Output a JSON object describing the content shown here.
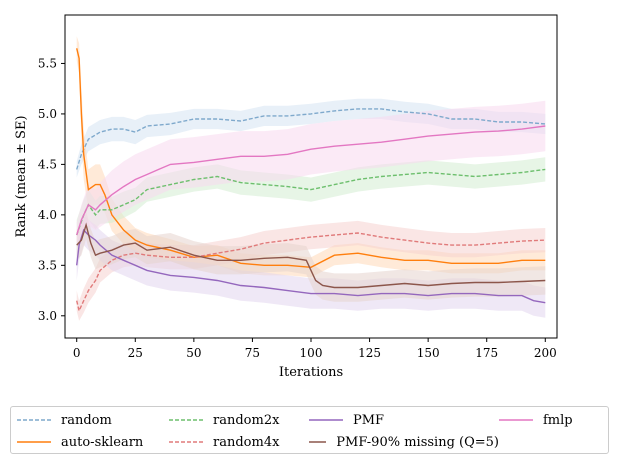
{
  "chart_data": {
    "type": "line",
    "title": "",
    "xlabel": "Iterations",
    "ylabel": "Rank (mean ± SE)",
    "xlim": [
      -5,
      205
    ],
    "ylim": [
      2.78,
      5.98
    ],
    "xticks": [
      0,
      25,
      50,
      75,
      100,
      125,
      150,
      175,
      200
    ],
    "yticks": [
      3.0,
      3.5,
      4.0,
      4.5,
      5.0,
      5.5
    ],
    "xtick_labels": [
      "0",
      "25",
      "50",
      "75",
      "100",
      "125",
      "150",
      "175",
      "200"
    ],
    "ytick_labels": [
      "3.0",
      "3.5",
      "4.0",
      "4.5",
      "5.0",
      "5.5"
    ],
    "legend_position": "below",
    "series": [
      {
        "name": "random",
        "color": "#7fa9cc",
        "band": "#d5e4f2",
        "dash": true,
        "x": [
          0,
          2,
          5,
          10,
          15,
          20,
          25,
          30,
          40,
          50,
          60,
          70,
          80,
          90,
          100,
          110,
          120,
          130,
          140,
          150,
          160,
          170,
          180,
          190,
          200
        ],
        "y": [
          4.45,
          4.6,
          4.75,
          4.82,
          4.85,
          4.85,
          4.82,
          4.88,
          4.9,
          4.95,
          4.95,
          4.93,
          4.98,
          4.98,
          5.0,
          5.03,
          5.05,
          5.05,
          5.02,
          5.0,
          4.95,
          4.95,
          4.92,
          4.92,
          4.9
        ],
        "se": [
          0.08,
          0.1,
          0.12,
          0.12,
          0.12,
          0.12,
          0.12,
          0.11,
          0.11,
          0.1,
          0.1,
          0.1,
          0.1,
          0.1,
          0.1,
          0.1,
          0.1,
          0.1,
          0.1,
          0.1,
          0.1,
          0.1,
          0.1,
          0.1,
          0.1
        ]
      },
      {
        "name": "auto-sklearn",
        "color": "#ff7f0e",
        "band": "#ffd9b8",
        "dash": false,
        "x": [
          0,
          1,
          2,
          3,
          5,
          8,
          10,
          12,
          15,
          20,
          25,
          30,
          40,
          50,
          60,
          70,
          80,
          90,
          100,
          110,
          120,
          130,
          140,
          150,
          160,
          170,
          180,
          190,
          200
        ],
        "y": [
          5.65,
          5.55,
          5.0,
          4.6,
          4.25,
          4.3,
          4.3,
          4.2,
          4.0,
          3.85,
          3.75,
          3.7,
          3.65,
          3.58,
          3.6,
          3.52,
          3.5,
          3.5,
          3.48,
          3.6,
          3.62,
          3.58,
          3.55,
          3.55,
          3.52,
          3.52,
          3.52,
          3.55,
          3.55
        ],
        "se": [
          0.12,
          0.15,
          0.25,
          0.25,
          0.2,
          0.2,
          0.2,
          0.18,
          0.16,
          0.14,
          0.12,
          0.12,
          0.11,
          0.11,
          0.1,
          0.1,
          0.1,
          0.1,
          0.1,
          0.1,
          0.1,
          0.1,
          0.1,
          0.1,
          0.1,
          0.1,
          0.1,
          0.1,
          0.1
        ]
      },
      {
        "name": "random2x",
        "color": "#6dbf6d",
        "band": "#d3ecd1",
        "dash": true,
        "x": [
          0,
          3,
          5,
          8,
          10,
          15,
          20,
          25,
          30,
          40,
          50,
          60,
          70,
          80,
          90,
          100,
          110,
          120,
          130,
          140,
          150,
          160,
          170,
          180,
          190,
          200
        ],
        "y": [
          3.8,
          4.0,
          4.1,
          4.0,
          4.05,
          4.05,
          4.1,
          4.15,
          4.25,
          4.3,
          4.35,
          4.38,
          4.32,
          4.3,
          4.28,
          4.25,
          4.3,
          4.35,
          4.38,
          4.4,
          4.42,
          4.4,
          4.38,
          4.4,
          4.42,
          4.45
        ],
        "se": [
          0.15,
          0.15,
          0.15,
          0.14,
          0.14,
          0.13,
          0.13,
          0.12,
          0.12,
          0.12,
          0.12,
          0.12,
          0.12,
          0.12,
          0.12,
          0.12,
          0.12,
          0.12,
          0.12,
          0.12,
          0.12,
          0.12,
          0.12,
          0.12,
          0.12,
          0.12
        ]
      },
      {
        "name": "random4x",
        "color": "#e07a7a",
        "band": "#f5d2cf",
        "dash": true,
        "x": [
          0,
          1,
          3,
          5,
          8,
          10,
          15,
          20,
          25,
          30,
          40,
          50,
          60,
          70,
          80,
          90,
          100,
          110,
          120,
          130,
          140,
          150,
          160,
          170,
          180,
          190,
          200
        ],
        "y": [
          3.15,
          3.05,
          3.15,
          3.25,
          3.35,
          3.45,
          3.55,
          3.6,
          3.62,
          3.6,
          3.58,
          3.58,
          3.62,
          3.66,
          3.72,
          3.75,
          3.78,
          3.8,
          3.82,
          3.78,
          3.75,
          3.72,
          3.7,
          3.7,
          3.72,
          3.74,
          3.75
        ],
        "se": [
          0.1,
          0.1,
          0.12,
          0.12,
          0.12,
          0.12,
          0.12,
          0.12,
          0.12,
          0.12,
          0.12,
          0.12,
          0.12,
          0.12,
          0.12,
          0.12,
          0.12,
          0.12,
          0.12,
          0.12,
          0.12,
          0.12,
          0.12,
          0.12,
          0.12,
          0.12,
          0.12
        ]
      },
      {
        "name": "PMF",
        "color": "#9467bd",
        "band": "#e2d6ef",
        "dash": false,
        "x": [
          0,
          1,
          3,
          5,
          8,
          10,
          15,
          20,
          25,
          30,
          40,
          50,
          60,
          70,
          80,
          90,
          100,
          110,
          120,
          130,
          140,
          150,
          160,
          170,
          180,
          190,
          195,
          200
        ],
        "y": [
          3.5,
          3.7,
          3.85,
          3.8,
          3.75,
          3.7,
          3.6,
          3.55,
          3.5,
          3.45,
          3.4,
          3.38,
          3.35,
          3.3,
          3.28,
          3.25,
          3.22,
          3.22,
          3.2,
          3.22,
          3.22,
          3.2,
          3.22,
          3.22,
          3.2,
          3.2,
          3.15,
          3.13
        ],
        "se": [
          0.15,
          0.15,
          0.15,
          0.15,
          0.15,
          0.15,
          0.15,
          0.15,
          0.15,
          0.15,
          0.15,
          0.15,
          0.15,
          0.15,
          0.15,
          0.15,
          0.15,
          0.15,
          0.15,
          0.15,
          0.15,
          0.15,
          0.15,
          0.15,
          0.15,
          0.15,
          0.15,
          0.15
        ]
      },
      {
        "name": "PMF-90% missing (Q=5)",
        "color": "#8c564b",
        "band": "#e5d3ce",
        "dash": false,
        "x": [
          0,
          2,
          4,
          6,
          8,
          10,
          15,
          20,
          25,
          30,
          40,
          50,
          60,
          70,
          80,
          90,
          98,
          100,
          102,
          105,
          110,
          120,
          130,
          140,
          150,
          160,
          170,
          180,
          190,
          200
        ],
        "y": [
          3.7,
          3.75,
          3.9,
          3.72,
          3.6,
          3.62,
          3.65,
          3.7,
          3.72,
          3.65,
          3.68,
          3.6,
          3.55,
          3.55,
          3.57,
          3.58,
          3.55,
          3.45,
          3.35,
          3.3,
          3.28,
          3.28,
          3.3,
          3.32,
          3.3,
          3.32,
          3.33,
          3.33,
          3.34,
          3.35
        ],
        "se": [
          0.15,
          0.15,
          0.14,
          0.14,
          0.14,
          0.14,
          0.14,
          0.14,
          0.14,
          0.14,
          0.14,
          0.14,
          0.14,
          0.14,
          0.14,
          0.14,
          0.14,
          0.14,
          0.14,
          0.14,
          0.14,
          0.14,
          0.14,
          0.14,
          0.14,
          0.14,
          0.14,
          0.14,
          0.14,
          0.14
        ]
      },
      {
        "name": "fmlp",
        "color": "#e377c2",
        "band": "#f7d8ee",
        "dash": false,
        "x": [
          0,
          2,
          5,
          8,
          10,
          15,
          20,
          25,
          30,
          35,
          40,
          50,
          60,
          70,
          80,
          90,
          100,
          110,
          120,
          130,
          140,
          150,
          160,
          170,
          180,
          190,
          200
        ],
        "y": [
          3.8,
          3.95,
          4.1,
          4.05,
          4.1,
          4.2,
          4.28,
          4.35,
          4.4,
          4.45,
          4.5,
          4.52,
          4.55,
          4.58,
          4.58,
          4.6,
          4.65,
          4.68,
          4.7,
          4.72,
          4.75,
          4.78,
          4.8,
          4.82,
          4.83,
          4.85,
          4.88
        ],
        "se": [
          0.12,
          0.15,
          0.2,
          0.2,
          0.22,
          0.24,
          0.25,
          0.25,
          0.25,
          0.25,
          0.25,
          0.25,
          0.25,
          0.25,
          0.25,
          0.25,
          0.25,
          0.25,
          0.25,
          0.25,
          0.25,
          0.25,
          0.25,
          0.25,
          0.25,
          0.25,
          0.25
        ]
      }
    ]
  },
  "legend": {
    "items": [
      {
        "label": "random",
        "color": "#7fa9cc",
        "dash": true,
        "name": "legend-item-random"
      },
      {
        "label": "random2x",
        "color": "#6dbf6d",
        "dash": true,
        "name": "legend-item-random2x"
      },
      {
        "label": "PMF",
        "color": "#9467bd",
        "dash": false,
        "name": "legend-item-pmf"
      },
      {
        "label": "fmlp",
        "color": "#e377c2",
        "dash": false,
        "name": "legend-item-fmlp"
      },
      {
        "label": "auto-sklearn",
        "color": "#ff7f0e",
        "dash": false,
        "name": "legend-item-auto-sklearn"
      },
      {
        "label": "random4x",
        "color": "#e07a7a",
        "dash": true,
        "name": "legend-item-random4x"
      },
      {
        "label": "PMF-90% missing (Q=5)",
        "color": "#8c564b",
        "dash": false,
        "name": "legend-item-pmf-90-missing"
      },
      {
        "label": "",
        "color": "",
        "dash": false,
        "name": "legend-empty-cell"
      }
    ]
  }
}
